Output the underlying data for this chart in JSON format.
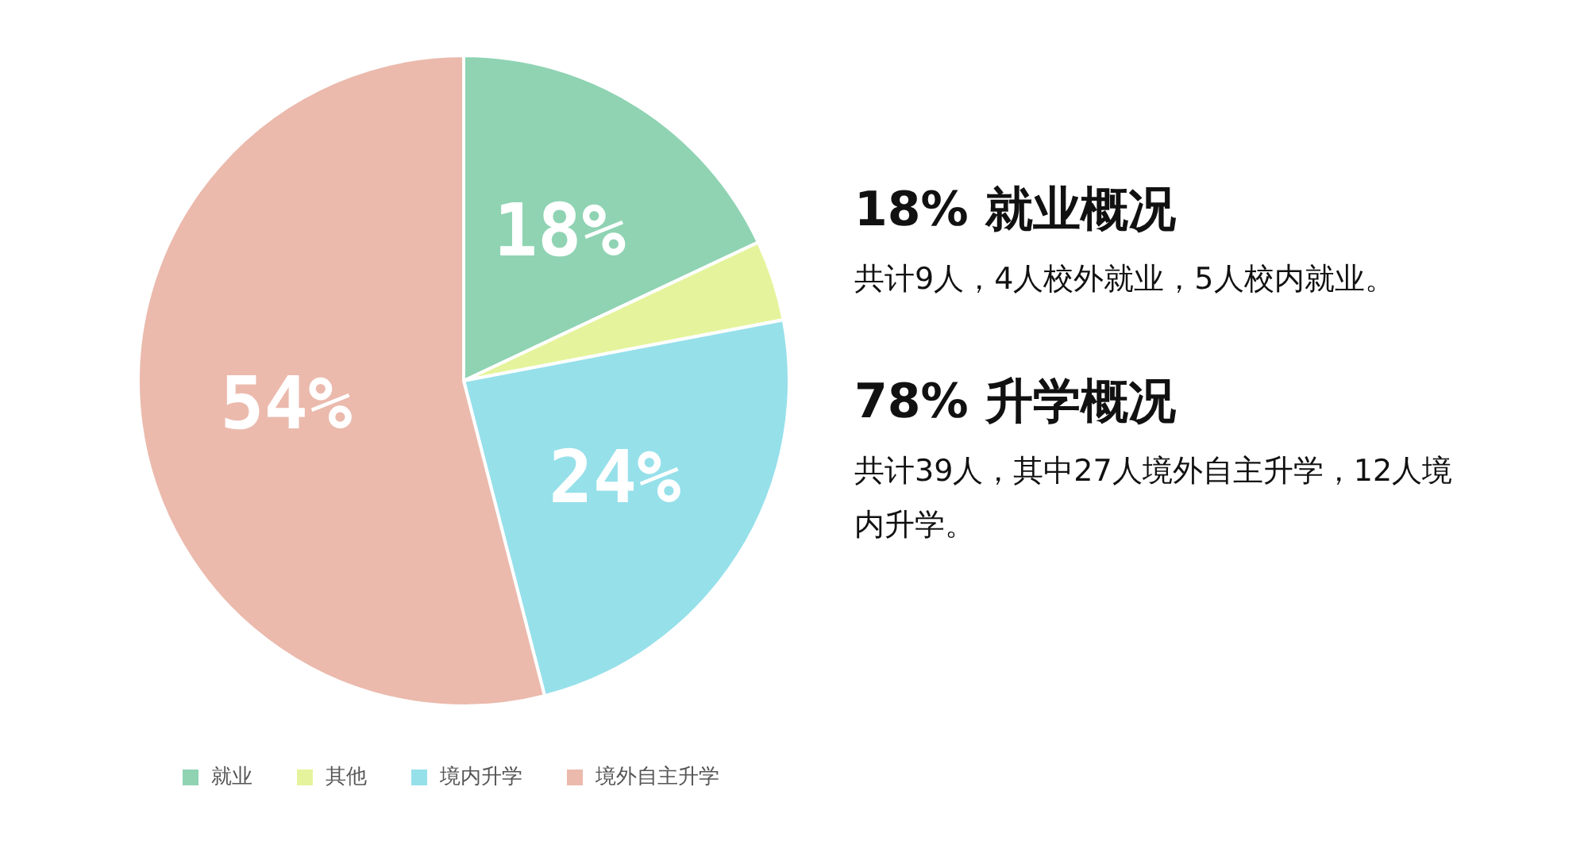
{
  "chart_data": {
    "type": "pie",
    "categories": [
      "就业",
      "其他",
      "境内升学",
      "境外自主升学"
    ],
    "values": [
      18,
      4,
      24,
      54
    ],
    "colors": [
      "#8fd3b3",
      "#e5f49c",
      "#96e0ea",
      "#ebbaad"
    ],
    "value_labels": [
      "18%",
      null,
      "24%",
      "54%"
    ],
    "legend": "bottom",
    "annotations": [
      "18% 就业概况",
      "共计9人，4人校外就业，5人校内就业。",
      "78% 升学概况",
      "共计39人，其中27人境外自主升学，12人境内升学。"
    ]
  }
}
